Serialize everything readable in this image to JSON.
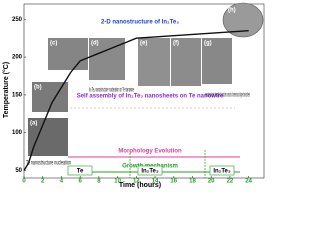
{
  "chart_data": {
    "type": "line",
    "x_label": "Time (hours)",
    "y_label": "Temperature (°C)",
    "xlim": [
      0,
      25
    ],
    "xticks": [
      0,
      2,
      4,
      6,
      8,
      10,
      12,
      14,
      16,
      18,
      20,
      22,
      24
    ],
    "ylim": [
      40,
      265
    ],
    "yticks": [
      50,
      100,
      150,
      200,
      250
    ],
    "series": [
      {
        "color": "#111111",
        "x": [
          0,
          0.5,
          1,
          2,
          3,
          4,
          5,
          6,
          8,
          10,
          12,
          24
        ],
        "values": [
          50,
          60,
          80,
          110,
          140,
          160,
          180,
          195,
          205,
          215,
          225,
          235
        ]
      }
    ],
    "panels": [
      "(a)",
      "(b)",
      "(c)",
      "(d)",
      "(e)",
      "(f)",
      "(g)",
      "(h)"
    ],
    "annotations": [
      {
        "text": "2-D nanostructure of In₂Te₃",
        "color": "#1f3fd0"
      },
      {
        "text": "Self assembly of In₂Te₃ nanosheets on Te nanowire",
        "color": "#8a2be2"
      },
      {
        "text": "Morphology Evolution",
        "color": "#e0409a"
      },
      {
        "text": "Growth mechanism",
        "color": "#22a022"
      },
      {
        "text": "Te nanostructure nucleation",
        "color": "#111111"
      },
      {
        "text": "In₂Te₃ nanostructure nucleation on Te nanowire",
        "color": "#111111"
      },
      {
        "text": "nanostring-cluster hierarchical structure consists of ordered and aligned nanosheets",
        "color": "#111111"
      }
    ],
    "stages": [
      "Te",
      "In₂Te₃",
      "In₂Te₃"
    ]
  }
}
